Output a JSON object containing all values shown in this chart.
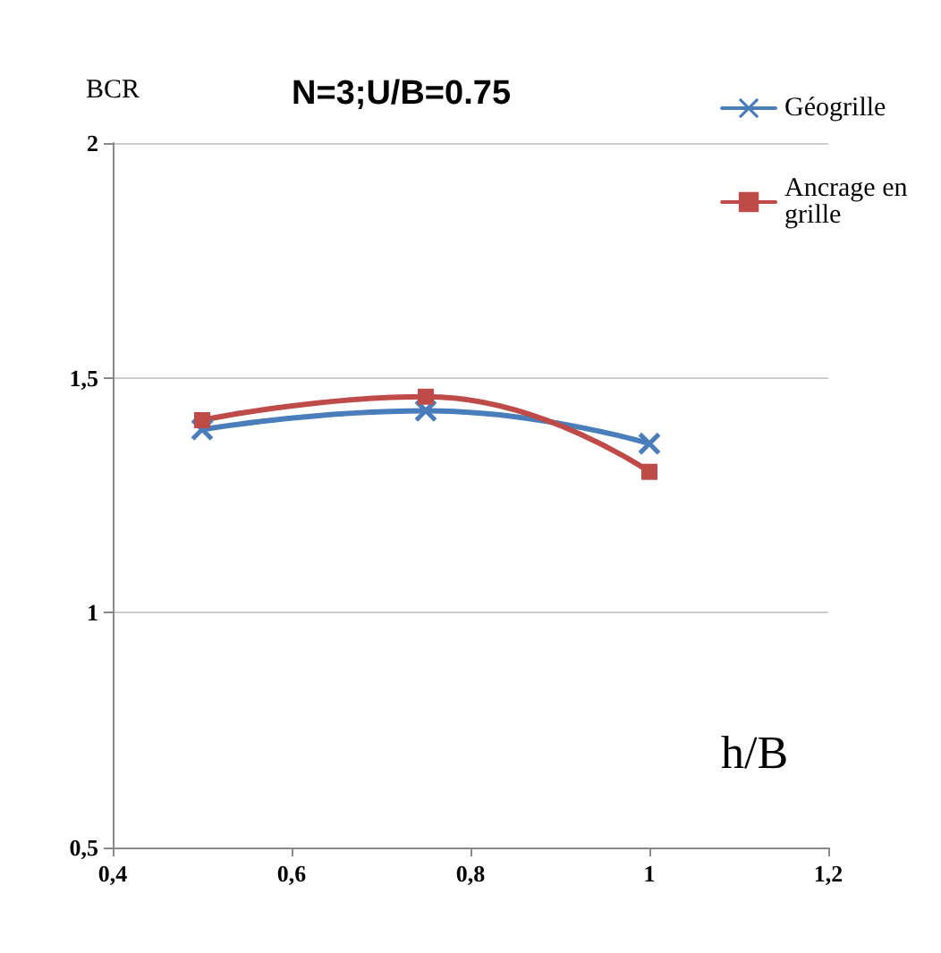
{
  "chart_data": {
    "type": "line",
    "title": "N=3;U/B=0.75",
    "xlabel": "h/B",
    "ylabel": "BCR",
    "x": [
      0.5,
      0.75,
      1
    ],
    "series": [
      {
        "name": "Géogrille",
        "color": "#4a7ebb",
        "values": [
          1.39,
          1.43,
          1.36
        ],
        "marker": "cross"
      },
      {
        "name": "Ancrage en grille",
        "color": "#be4b48",
        "values": [
          1.41,
          1.46,
          1.3
        ],
        "marker": "square"
      }
    ],
    "xlim": [
      0.4,
      1.2
    ],
    "xticks": [
      {
        "value": 0.4,
        "label": "0,4"
      },
      {
        "value": 0.6,
        "label": "0,6"
      },
      {
        "value": 0.8,
        "label": "0,8"
      },
      1,
      {
        "value": 1.2,
        "label": "1,2"
      }
    ],
    "ylim": [
      0.5,
      2
    ],
    "yticks": [
      {
        "value": 0.5,
        "label": "0,5"
      },
      1,
      {
        "value": 1.5,
        "label": "1,5"
      },
      2
    ],
    "grid": "y",
    "legend": "right",
    "line_style": "solid"
  }
}
